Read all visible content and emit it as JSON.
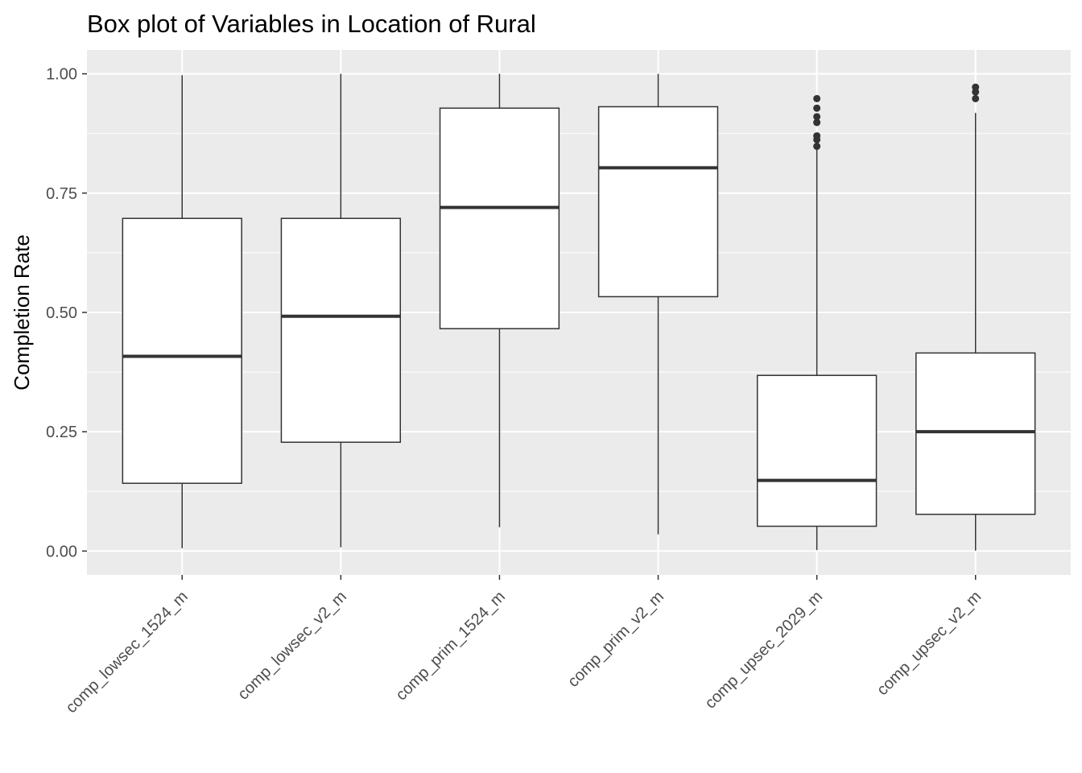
{
  "chart_data": {
    "type": "box",
    "title": "Box plot of Variables in Location of Rural",
    "ylabel": "Completion Rate",
    "xlabel": "",
    "ylim": [
      -0.05,
      1.05
    ],
    "y_ticks": [
      0.0,
      0.25,
      0.5,
      0.75,
      1.0
    ],
    "y_tick_labels": [
      "0.00",
      "0.25",
      "0.50",
      "0.75",
      "1.00"
    ],
    "grid": true,
    "colors": {
      "panel_background": "#ebebeb",
      "gridline": "#ffffff",
      "box_fill": "#ffffff",
      "box_stroke": "#333333",
      "outlier": "#333333"
    },
    "categories": [
      "comp_lowsec_1524_m",
      "comp_lowsec_v2_m",
      "comp_prim_1524_m",
      "comp_prim_v2_m",
      "comp_upsec_2029_m",
      "comp_upsec_v2_m"
    ],
    "boxes": [
      {
        "whisker_low": 0.006,
        "q1": 0.142,
        "median": 0.408,
        "q3": 0.697,
        "whisker_high": 0.997,
        "outliers": []
      },
      {
        "whisker_low": 0.008,
        "q1": 0.228,
        "median": 0.492,
        "q3": 0.697,
        "whisker_high": 1.0,
        "outliers": []
      },
      {
        "whisker_low": 0.05,
        "q1": 0.466,
        "median": 0.72,
        "q3": 0.928,
        "whisker_high": 1.0,
        "outliers": []
      },
      {
        "whisker_low": 0.035,
        "q1": 0.533,
        "median": 0.803,
        "q3": 0.931,
        "whisker_high": 1.0,
        "outliers": []
      },
      {
        "whisker_low": 0.002,
        "q1": 0.052,
        "median": 0.148,
        "q3": 0.368,
        "whisker_high": 0.846,
        "outliers": [
          0.848,
          0.862,
          0.87,
          0.898,
          0.91,
          0.928,
          0.948
        ]
      },
      {
        "whisker_low": 0.001,
        "q1": 0.077,
        "median": 0.25,
        "q3": 0.415,
        "whisker_high": 0.918,
        "outliers": [
          0.948,
          0.962,
          0.972
        ]
      }
    ]
  }
}
